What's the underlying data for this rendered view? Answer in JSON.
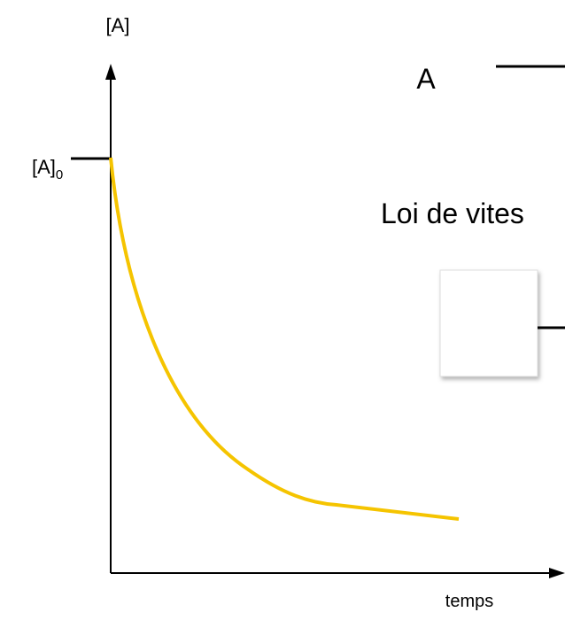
{
  "axes": {
    "y_label": "[A]",
    "x_label": "temps"
  },
  "initial_level": {
    "text": "[A]",
    "subscript": "0"
  },
  "reaction": {
    "reactant": "A"
  },
  "rate_law": {
    "text": "Loi de vites"
  }
}
